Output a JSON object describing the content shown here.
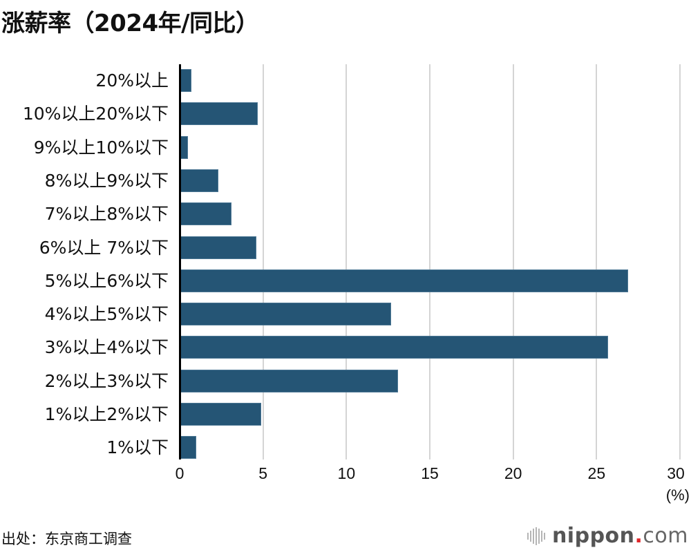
{
  "title": "涨薪率（2024年/同比）",
  "source": "出处：东京商工调查",
  "logo": {
    "name": "nippon",
    "dot": ".",
    "tld": "com"
  },
  "colors": {
    "bar": "#255575",
    "grid": "#d4d4d4",
    "axis": "#000000",
    "logo_dot": "#e0262a"
  },
  "chart_data": {
    "type": "bar",
    "orientation": "horizontal",
    "title": "涨薪率（2024年/同比）",
    "xlabel": "(%)",
    "ylabel": "",
    "xlim": [
      0,
      30
    ],
    "xticks": [
      0,
      5,
      10,
      15,
      20,
      25,
      30
    ],
    "grid": true,
    "legend": null,
    "categories": [
      "20%以上",
      "10%以上20%以下",
      "9%以上10%以下",
      "8%以上9%以下",
      "7%以上8%以下",
      "6%以上 7%以下",
      "5%以上6%以下",
      "4%以上5%以下",
      "3%以上4%以下",
      "2%以上3%以下",
      "1%以上2%以下",
      "1%以下"
    ],
    "values": [
      0.7,
      4.7,
      0.5,
      2.3,
      3.1,
      4.6,
      26.9,
      12.7,
      25.7,
      13.1,
      4.9,
      1.0
    ],
    "source": "出处：东京商工调查"
  },
  "axis": {
    "unit": "(%)",
    "ticks": [
      "0",
      "5",
      "10",
      "15",
      "20",
      "25",
      "30"
    ]
  }
}
